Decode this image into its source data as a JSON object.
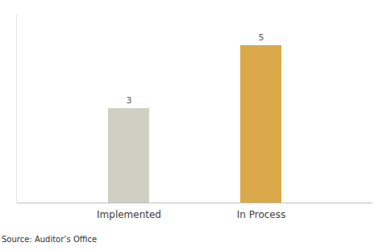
{
  "chart_data": {
    "type": "bar",
    "categories": [
      "Implemented",
      "In Process"
    ],
    "values": [
      3,
      5
    ],
    "colors": [
      "#d0cfc3",
      "#d9a94a"
    ],
    "ylim": [
      0,
      6
    ],
    "data_labels": true,
    "tick_labels": "x",
    "caption": "Source: Auditor’s Office"
  }
}
